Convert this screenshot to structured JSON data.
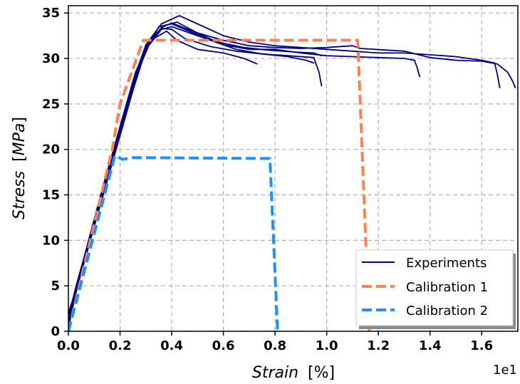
{
  "chart_data": {
    "type": "line",
    "xlabel": {
      "italic": "Strain",
      "unit": "[%]"
    },
    "ylabel": {
      "italic": "Stress",
      "unit_open": "[",
      "unit_italic": "MPa",
      "unit_close": "]"
    },
    "x_offset_text": "1e1",
    "xlim": [
      0.0,
      1.74
    ],
    "ylim": [
      0,
      35.8
    ],
    "x_ticks": [
      0.0,
      0.2,
      0.4,
      0.6,
      0.8,
      1.0,
      1.2,
      1.4,
      1.6
    ],
    "x_tick_labels": [
      "0.0",
      "0.2",
      "0.4",
      "0.6",
      "0.8",
      "1.0",
      "1.2",
      "1.4",
      "1.6"
    ],
    "y_ticks": [
      0,
      5,
      10,
      15,
      20,
      25,
      30,
      35
    ],
    "y_tick_labels": [
      "0",
      "5",
      "10",
      "15",
      "20",
      "25",
      "30",
      "35"
    ],
    "grid": true,
    "legend_position": "bottom-right",
    "colors": {
      "experiments": "#000080",
      "calibration1": "#ff7f50",
      "calibration2": "#1e90ff",
      "grid": "#b0b0b0"
    },
    "series": [
      {
        "name": "Experiments",
        "style": "solid",
        "color": "#000080",
        "points": [
          [
            0.0,
            1.5
          ],
          [
            0.03,
            5
          ],
          [
            0.08,
            10
          ],
          [
            0.13,
            15
          ],
          [
            0.19,
            21
          ],
          [
            0.25,
            27
          ],
          [
            0.3,
            31
          ],
          [
            0.35,
            33.5
          ],
          [
            0.4,
            33.8
          ],
          [
            0.45,
            33.2
          ],
          [
            0.55,
            32
          ],
          [
            0.65,
            31
          ],
          [
            0.75,
            30.5
          ],
          [
            0.85,
            30.3
          ],
          [
            0.95,
            30.1
          ],
          [
            0.97,
            28.5
          ],
          [
            0.98,
            27
          ]
        ]
      },
      {
        "points": [
          [
            0.0,
            0.8
          ],
          [
            0.03,
            4.5
          ],
          [
            0.08,
            9.5
          ],
          [
            0.13,
            14.5
          ],
          [
            0.19,
            20.5
          ],
          [
            0.25,
            26.5
          ],
          [
            0.3,
            31
          ],
          [
            0.36,
            33.2
          ],
          [
            0.4,
            33.5
          ],
          [
            0.5,
            32.5
          ],
          [
            0.6,
            31.5
          ],
          [
            0.7,
            31
          ],
          [
            0.8,
            31
          ],
          [
            0.9,
            30.6
          ],
          [
            1.0,
            30.3
          ],
          [
            1.1,
            30.2
          ],
          [
            1.2,
            30.1
          ],
          [
            1.3,
            30
          ],
          [
            1.34,
            29.8
          ],
          [
            1.35,
            29
          ],
          [
            1.36,
            28
          ]
        ],
        "color": "#000080"
      },
      {
        "points": [
          [
            0.0,
            0.3
          ],
          [
            0.04,
            6
          ],
          [
            0.09,
            11
          ],
          [
            0.14,
            16
          ],
          [
            0.2,
            22
          ],
          [
            0.26,
            28
          ],
          [
            0.32,
            32
          ],
          [
            0.38,
            33
          ],
          [
            0.42,
            32
          ],
          [
            0.5,
            31
          ],
          [
            0.6,
            30.6
          ],
          [
            0.68,
            30
          ],
          [
            0.73,
            29.4
          ]
        ],
        "color": "#000080"
      },
      {
        "points": [
          [
            0.0,
            1
          ],
          [
            0.03,
            4.8
          ],
          [
            0.08,
            10.2
          ],
          [
            0.13,
            15.5
          ],
          [
            0.19,
            21.5
          ],
          [
            0.25,
            27.5
          ],
          [
            0.3,
            31.5
          ],
          [
            0.36,
            33.8
          ],
          [
            0.43,
            34.7
          ],
          [
            0.5,
            33.8
          ],
          [
            0.6,
            32.5
          ],
          [
            0.7,
            31.8
          ],
          [
            0.8,
            31.4
          ],
          [
            0.9,
            31.2
          ],
          [
            1.0,
            31
          ],
          [
            1.1,
            30.8
          ],
          [
            1.2,
            30.6
          ],
          [
            1.3,
            30.6
          ],
          [
            1.4,
            30.4
          ],
          [
            1.5,
            30.2
          ],
          [
            1.6,
            29.8
          ],
          [
            1.65,
            29.5
          ],
          [
            1.66,
            28.3
          ],
          [
            1.67,
            26.8
          ]
        ],
        "color": "#000080"
      },
      {
        "points": [
          [
            0.0,
            0.5
          ],
          [
            0.03,
            4.3
          ],
          [
            0.08,
            9.8
          ],
          [
            0.13,
            14.8
          ],
          [
            0.19,
            21
          ],
          [
            0.25,
            27
          ],
          [
            0.3,
            31.2
          ],
          [
            0.36,
            33.4
          ],
          [
            0.4,
            33.9
          ],
          [
            0.48,
            33
          ],
          [
            0.58,
            31.8
          ],
          [
            0.68,
            31.2
          ],
          [
            0.78,
            30.9
          ],
          [
            0.88,
            30.7
          ],
          [
            0.95,
            30.6
          ],
          [
            0.98,
            30.3
          ]
        ],
        "color": "#000080"
      },
      {
        "points": [
          [
            0.0,
            2
          ],
          [
            0.04,
            5.5
          ],
          [
            0.09,
            10.5
          ],
          [
            0.14,
            16
          ],
          [
            0.2,
            22.5
          ],
          [
            0.26,
            28.5
          ],
          [
            0.32,
            32.2
          ],
          [
            0.37,
            33.6
          ],
          [
            0.42,
            34
          ],
          [
            0.5,
            32.8
          ],
          [
            0.6,
            32
          ],
          [
            0.7,
            31.4
          ],
          [
            0.8,
            31.2
          ],
          [
            0.9,
            31.1
          ],
          [
            1.0,
            31.2
          ],
          [
            1.1,
            31.4
          ],
          [
            1.13,
            31.1
          ],
          [
            1.3,
            30.8
          ],
          [
            1.4,
            30.1
          ],
          [
            1.5,
            29.8
          ],
          [
            1.6,
            29.7
          ],
          [
            1.66,
            29.4
          ],
          [
            1.7,
            28.5
          ],
          [
            1.72,
            27.5
          ],
          [
            1.73,
            26.8
          ]
        ],
        "color": "#000080"
      },
      {
        "points": [
          [
            0.0,
            1.2
          ],
          [
            0.03,
            4.6
          ],
          [
            0.08,
            10
          ],
          [
            0.13,
            15.2
          ],
          [
            0.19,
            21.2
          ],
          [
            0.25,
            27.2
          ],
          [
            0.3,
            31.3
          ],
          [
            0.36,
            33.3
          ],
          [
            0.4,
            33.2
          ],
          [
            0.45,
            32.2
          ],
          [
            0.55,
            31.3
          ],
          [
            0.65,
            30.8
          ],
          [
            0.75,
            30.5
          ],
          [
            0.85,
            30.2
          ],
          [
            0.92,
            29.8
          ],
          [
            0.95,
            29.5
          ]
        ],
        "color": "#000080"
      },
      {
        "name": "Calibration 1",
        "style": "dashed",
        "color": "#ff7f50",
        "points": [
          [
            0.0,
            0.0
          ],
          [
            0.17,
            20
          ],
          [
            0.2,
            25
          ],
          [
            0.29,
            32
          ],
          [
            1.12,
            32
          ],
          [
            1.165,
            0.0
          ]
        ]
      },
      {
        "name": "Calibration 2",
        "style": "dashed",
        "color": "#1e90ff",
        "points": [
          [
            0.0,
            0.0
          ],
          [
            0.18,
            19.3
          ],
          [
            0.21,
            18.9
          ],
          [
            0.25,
            19.1
          ],
          [
            0.78,
            19.0
          ],
          [
            0.81,
            0.0
          ]
        ]
      }
    ]
  }
}
